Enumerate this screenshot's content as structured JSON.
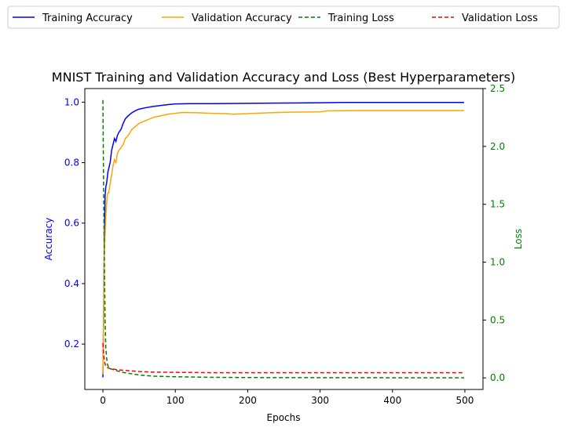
{
  "chart_data": {
    "type": "line",
    "title": "MNIST Training and Validation Accuracy and Loss (Best Hyperparameters)",
    "xlabel": "Epochs",
    "ylabel": "Accuracy",
    "y2label": "Loss",
    "xlim": [
      -25,
      525
    ],
    "ylim": [
      0.05,
      1.045
    ],
    "y2lim": [
      -0.1,
      2.5
    ],
    "xticks": [
      0,
      100,
      200,
      300,
      400,
      500
    ],
    "yticks": [
      0.2,
      0.4,
      0.6,
      0.8,
      1.0
    ],
    "y2ticks": [
      0.0,
      0.5,
      1.0,
      1.5,
      2.0,
      2.5
    ],
    "xtick_labels": [
      "0",
      "100",
      "200",
      "300",
      "400",
      "500"
    ],
    "ytick_labels": [
      "0.2",
      "0.4",
      "0.6",
      "0.8",
      "1.0"
    ],
    "y2tick_labels": [
      "0.0",
      "0.5",
      "1.0",
      "1.5",
      "2.0",
      "2.5"
    ],
    "grid": false,
    "legend_position": "top, above plot",
    "colors": {
      "training_accuracy": "#0000ff",
      "validation_accuracy": "#ffa500",
      "training_loss": "#008000",
      "validation_loss": "#ff0000",
      "left_axis": "#0000ff",
      "right_axis": "#008000"
    },
    "series": [
      {
        "name": "Training Accuracy",
        "axis": "left",
        "style": "solid",
        "x": [
          0,
          1,
          2,
          3,
          4,
          5,
          6,
          7,
          8,
          10,
          12,
          14,
          16,
          18,
          20,
          22,
          25,
          28,
          31,
          35,
          40,
          45,
          50,
          60,
          70,
          80,
          90,
          100,
          120,
          150,
          200,
          250,
          300,
          330,
          400,
          450,
          499
        ],
        "y": [
          0.09,
          0.3,
          0.55,
          0.69,
          0.72,
          0.73,
          0.75,
          0.77,
          0.78,
          0.8,
          0.84,
          0.86,
          0.88,
          0.87,
          0.89,
          0.9,
          0.91,
          0.93,
          0.945,
          0.955,
          0.965,
          0.972,
          0.977,
          0.982,
          0.986,
          0.989,
          0.992,
          0.994,
          0.995,
          0.995,
          0.996,
          0.997,
          0.998,
          0.999,
          0.999,
          0.999,
          0.999
        ]
      },
      {
        "name": "Validation Accuracy",
        "axis": "left",
        "style": "solid",
        "x": [
          0,
          1,
          2,
          3,
          4,
          5,
          6,
          7,
          8,
          10,
          12,
          14,
          16,
          18,
          20,
          22,
          25,
          28,
          31,
          35,
          40,
          45,
          50,
          60,
          70,
          80,
          90,
          100,
          110,
          130,
          150,
          170,
          180,
          200,
          230,
          260,
          300,
          310,
          350,
          400,
          450,
          499
        ],
        "y": [
          0.1,
          0.28,
          0.5,
          0.56,
          0.62,
          0.66,
          0.69,
          0.7,
          0.7,
          0.73,
          0.76,
          0.79,
          0.81,
          0.8,
          0.83,
          0.84,
          0.85,
          0.86,
          0.88,
          0.89,
          0.91,
          0.92,
          0.93,
          0.94,
          0.95,
          0.955,
          0.96,
          0.963,
          0.966,
          0.965,
          0.963,
          0.962,
          0.96,
          0.962,
          0.965,
          0.967,
          0.968,
          0.971,
          0.972,
          0.972,
          0.972,
          0.972
        ]
      },
      {
        "name": "Training Loss",
        "axis": "right",
        "style": "dashed",
        "x": [
          0,
          1,
          2,
          3,
          4,
          6,
          8,
          10,
          15,
          20,
          30,
          40,
          50,
          70,
          100,
          150,
          200,
          300,
          400,
          499
        ],
        "y": [
          2.4,
          1.6,
          1.0,
          0.5,
          0.25,
          0.12,
          0.09,
          0.08,
          0.07,
          0.06,
          0.045,
          0.035,
          0.025,
          0.015,
          0.01,
          0.005,
          0.003,
          0.002,
          0.001,
          0.001
        ]
      },
      {
        "name": "Validation Loss",
        "axis": "right",
        "style": "dashed",
        "x": [
          0,
          1,
          2,
          3,
          4,
          6,
          8,
          10,
          15,
          20,
          30,
          40,
          50,
          70,
          100,
          150,
          200,
          300,
          400,
          499
        ],
        "y": [
          0.3,
          0.2,
          0.15,
          0.12,
          0.1,
          0.09,
          0.085,
          0.08,
          0.075,
          0.07,
          0.065,
          0.06,
          0.055,
          0.05,
          0.048,
          0.045,
          0.045,
          0.045,
          0.045,
          0.045
        ]
      }
    ]
  }
}
